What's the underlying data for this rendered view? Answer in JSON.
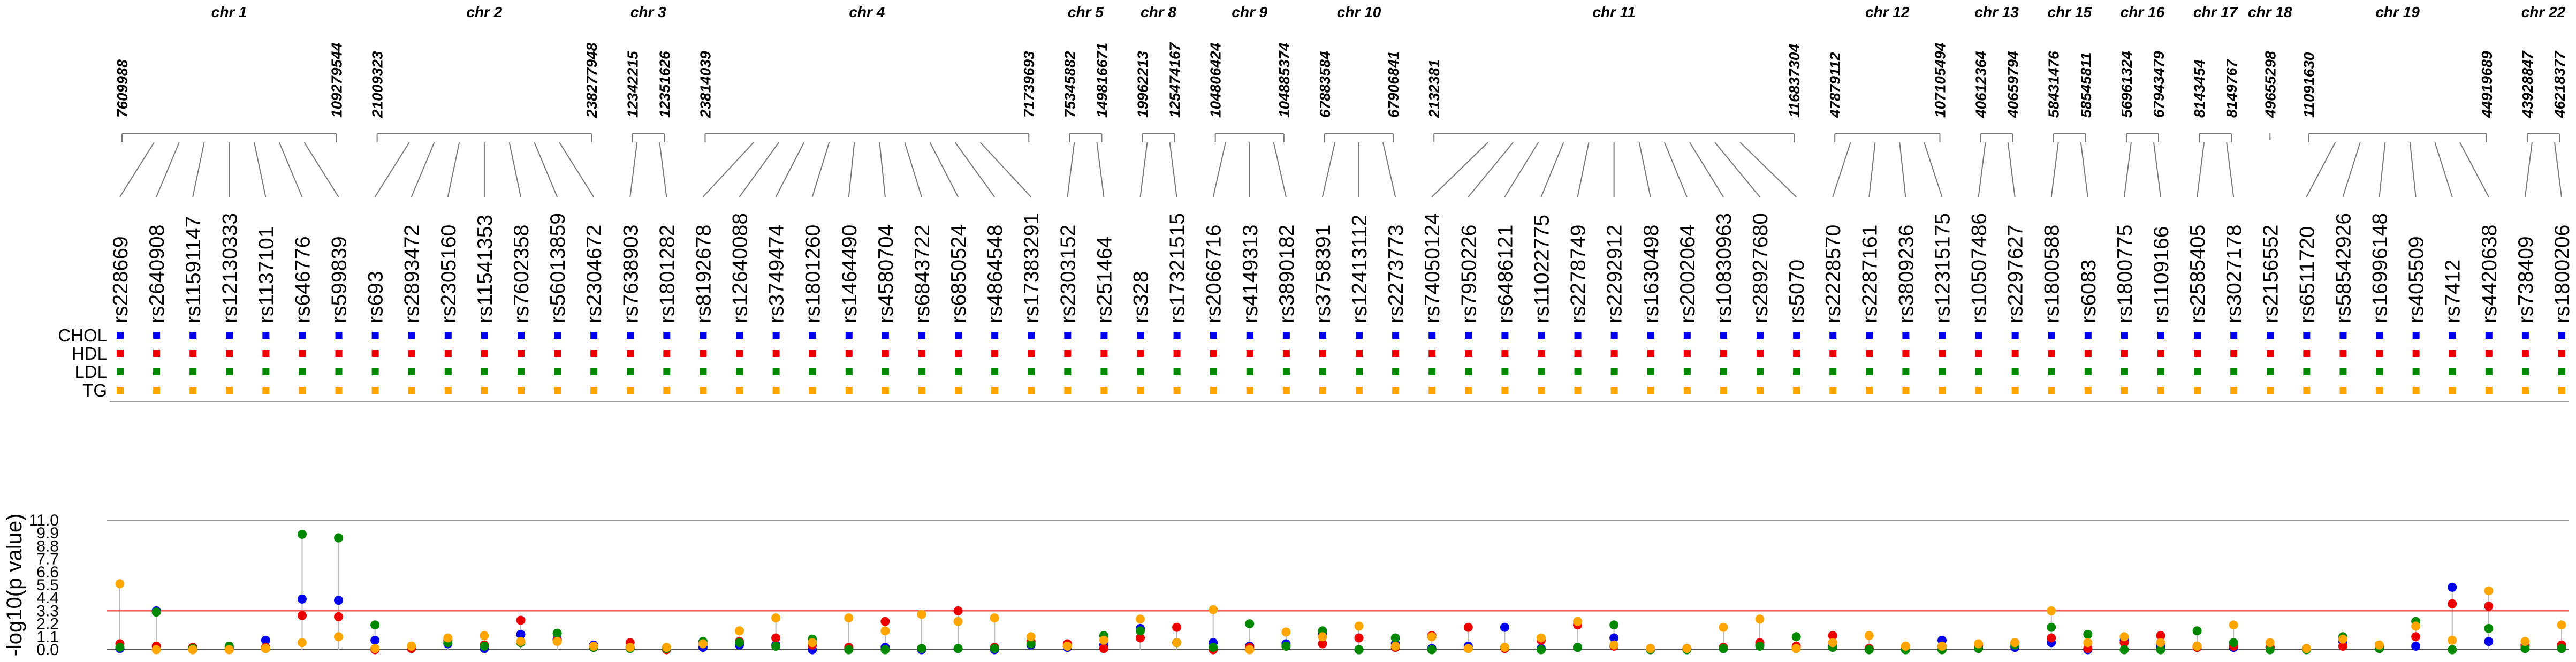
{
  "chart_data": {
    "type": "scatter",
    "title": "",
    "xlabel": "",
    "ylabel": "-log10(p value)",
    "ylim": [
      0,
      11
    ],
    "yticks": [
      "0.0",
      "1.1",
      "2.2",
      "3.3",
      "4.4",
      "5.5",
      "6.6",
      "7.7",
      "8.8",
      "9.9",
      "11.0"
    ],
    "threshold": 3.3,
    "series": [
      {
        "name": "CHOL",
        "color": "#0000ee"
      },
      {
        "name": "HDL",
        "color": "#ee0000"
      },
      {
        "name": "LDL",
        "color": "#008800"
      },
      {
        "name": "TG",
        "color": "#ffa500"
      }
    ],
    "snps": [
      "rs228669",
      "rs2640908",
      "rs11591147",
      "rs12130333",
      "rs1137101",
      "rs646776",
      "rs599839",
      "rs693",
      "rs2893472",
      "rs2305160",
      "rs11541353",
      "rs7602358",
      "rs56013859",
      "rs2304672",
      "rs7638903",
      "rs1801282",
      "rs8192678",
      "rs12640088",
      "rs3749474",
      "rs1801260",
      "rs1464490",
      "rs4580704",
      "rs6843722",
      "rs6850524",
      "rs4864548",
      "rs17383291",
      "rs2303152",
      "rs251464",
      "rs328",
      "rs17321515",
      "rs2066716",
      "rs4149313",
      "rs3890182",
      "rs3758391",
      "rs12413112",
      "rs2273773",
      "rs74050124",
      "rs7950226",
      "rs6486121",
      "rs11022775",
      "rs2278749",
      "rs2292912",
      "rs1630498",
      "rs2002064",
      "rs10830963",
      "rs28927680",
      "rs5070",
      "rs2228570",
      "rs2287161",
      "rs3809236",
      "rs12315175",
      "rs10507486",
      "rs2297627",
      "rs1800588",
      "rs6083",
      "rs1800775",
      "rs1109166",
      "rs2585405",
      "rs3027178",
      "rs2156552",
      "rs6511720",
      "rs58542926",
      "rs16996148",
      "rs405509",
      "rs7412",
      "rs4420638",
      "rs738409",
      "rs1800206"
    ],
    "chromosomes": [
      {
        "label": "chr 1",
        "start": "7609988",
        "end": "109279544",
        "snp_first": 0,
        "snp_last": 6
      },
      {
        "label": "chr 2",
        "start": "21009323",
        "end": "238277948",
        "snp_first": 7,
        "snp_last": 13
      },
      {
        "label": "chr 3",
        "start": "12342215",
        "end": "12351626",
        "snp_first": 14,
        "snp_last": 15
      },
      {
        "label": "chr 4",
        "start": "23814039",
        "end": "71739693",
        "snp_first": 16,
        "snp_last": 25
      },
      {
        "label": "chr 5",
        "start": "75345882",
        "end": "149816671",
        "snp_first": 26,
        "snp_last": 27
      },
      {
        "label": "chr 8",
        "start": "19962213",
        "end": "125474167",
        "snp_first": 28,
        "snp_last": 29
      },
      {
        "label": "chr 9",
        "start": "104806424",
        "end": "104885374",
        "snp_first": 30,
        "snp_last": 32
      },
      {
        "label": "chr 10",
        "start": "67883584",
        "end": "67906841",
        "snp_first": 33,
        "snp_last": 35
      },
      {
        "label": "chr 11",
        "start": "2132381",
        "end": "116837304",
        "snp_first": 36,
        "snp_last": 46
      },
      {
        "label": "chr 12",
        "start": "47879112",
        "end": "107105494",
        "snp_first": 47,
        "snp_last": 50
      },
      {
        "label": "chr 13",
        "start": "40612364",
        "end": "40659794",
        "snp_first": 51,
        "snp_last": 52
      },
      {
        "label": "chr 15",
        "start": "58431476",
        "end": "58545811",
        "snp_first": 53,
        "snp_last": 54
      },
      {
        "label": "chr 16",
        "start": "56961324",
        "end": "67943479",
        "snp_first": 55,
        "snp_last": 56
      },
      {
        "label": "chr 17",
        "start": "8143454",
        "end": "8149767",
        "snp_first": 57,
        "snp_last": 58
      },
      {
        "label": "chr 18",
        "start": "49655298",
        "end": "",
        "snp_first": 59,
        "snp_last": 59
      },
      {
        "label": "chr 19",
        "start": "11091630",
        "end": "44919689",
        "snp_first": 60,
        "snp_last": 65
      },
      {
        "label": "chr 22",
        "start": "43928847",
        "end": "46218377",
        "snp_first": 66,
        "snp_last": 67
      }
    ],
    "values": {
      "CHOL": [
        0.1,
        3.3,
        0.1,
        0.1,
        0.8,
        4.3,
        4.2,
        0.8,
        0.2,
        0.5,
        0.1,
        1.3,
        0.9,
        0.4,
        0.2,
        0.1,
        0.2,
        0.4,
        0.4,
        0.0,
        0.1,
        0.2,
        0.0,
        0.1,
        0.0,
        0.4,
        0.2,
        0.4,
        1.8,
        0.6,
        0.6,
        0.3,
        0.5,
        1.3,
        0.0,
        0.5,
        0.1,
        0.3,
        1.9,
        0.1,
        0.2,
        1.0,
        0.0,
        0.1,
        0.1,
        0.4,
        0.2,
        0.3,
        0.1,
        0.1,
        0.8,
        0.2,
        0.2,
        0.6,
        0.0,
        0.8,
        0.3,
        0.3,
        0.2,
        0.2,
        0.1,
        0.7,
        0.2,
        0.3,
        5.3,
        0.7,
        0.4,
        0.2
      ],
      "HDL": [
        0.5,
        0.3,
        0.2,
        0.2,
        0.2,
        2.9,
        2.8,
        0.0,
        0.1,
        0.8,
        0.4,
        2.5,
        0.8,
        0.2,
        0.6,
        0.0,
        0.5,
        0.7,
        1.0,
        0.4,
        0.2,
        2.4,
        0.1,
        3.3,
        0.2,
        0.7,
        0.5,
        0.1,
        1.0,
        1.9,
        0.0,
        0.2,
        0.3,
        0.5,
        1.0,
        0.2,
        1.2,
        1.9,
        0.1,
        0.8,
        2.1,
        0.3,
        0.1,
        0.1,
        0.2,
        0.6,
        0.3,
        1.2,
        0.1,
        0.1,
        0.3,
        0.3,
        0.6,
        1.0,
        0.1,
        0.6,
        1.2,
        0.2,
        0.3,
        0.2,
        0.1,
        0.3,
        0.2,
        1.1,
        3.9,
        3.7,
        0.3,
        0.4
      ],
      "LDL": [
        0.2,
        3.2,
        0.1,
        0.3,
        0.1,
        9.8,
        9.5,
        2.1,
        0.3,
        0.6,
        0.3,
        0.6,
        1.4,
        0.2,
        0.1,
        0.1,
        0.7,
        0.6,
        0.3,
        0.9,
        0.0,
        0.0,
        0.1,
        0.1,
        0.1,
        0.5,
        0.3,
        1.2,
        1.6,
        0.6,
        0.2,
        2.2,
        0.3,
        1.6,
        0.0,
        1.0,
        0.0,
        0.1,
        0.2,
        0.0,
        0.2,
        2.1,
        0.0,
        0.0,
        0.1,
        0.3,
        1.1,
        0.2,
        0.0,
        0.0,
        0.0,
        0.1,
        0.4,
        1.9,
        1.3,
        0.0,
        0.0,
        1.6,
        0.6,
        0.0,
        0.0,
        1.1,
        0.1,
        2.4,
        0.0,
        1.8,
        0.1,
        0.1
      ],
      "TG": [
        5.6,
        0.0,
        0.0,
        0.0,
        0.1,
        0.6,
        1.1,
        0.1,
        0.3,
        1.0,
        1.2,
        0.7,
        0.7,
        0.3,
        0.2,
        0.2,
        0.5,
        1.6,
        2.7,
        0.6,
        2.7,
        1.6,
        3.0,
        2.4,
        2.7,
        1.1,
        0.3,
        0.8,
        2.6,
        0.6,
        3.4,
        0.0,
        1.5,
        1.1,
        2.0,
        0.3,
        1.1,
        0.1,
        0.2,
        1.0,
        2.4,
        0.4,
        0.1,
        0.1,
        1.9,
        2.6,
        0.1,
        0.6,
        1.2,
        0.3,
        0.3,
        0.5,
        0.6,
        3.3,
        0.6,
        1.1,
        0.6,
        0.3,
        2.1,
        0.6,
        0.1,
        0.9,
        0.4,
        2.0,
        0.8,
        5.0,
        0.7,
        2.1
      ]
    }
  }
}
